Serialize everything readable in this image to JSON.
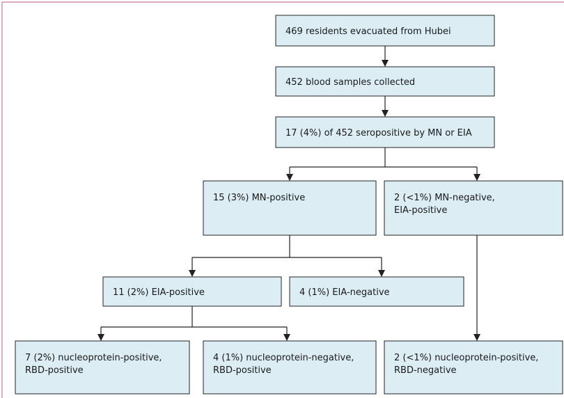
{
  "nodes": [
    {
      "lines": [
        "469 residents evacuated from Hubei"
      ]
    },
    {
      "lines": [
        "452 blood samples collected"
      ]
    },
    {
      "lines": [
        "17 (4%) of 452 seropositive by MN or EIA"
      ]
    },
    {
      "lines": [
        "15 (3%) MN-positive"
      ]
    },
    {
      "lines": [
        "2 (<1%) MN-negative,",
        "EIA-positive"
      ]
    },
    {
      "lines": [
        "11 (2%) EIA-positive"
      ]
    },
    {
      "lines": [
        "4 (1%) EIA-negative"
      ]
    },
    {
      "lines": [
        "7 (2%) nucleoprotein-positive,",
        "RBD-positive"
      ]
    },
    {
      "lines": [
        "4 (1%) nucleoprotein-negative,",
        "RBD-positive"
      ]
    },
    {
      "lines": [
        "2 (<1%) nucleoprotein-positive,",
        "RBD-negative"
      ]
    }
  ]
}
